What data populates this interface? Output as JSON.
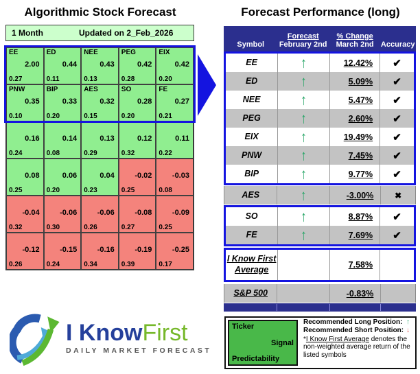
{
  "colors": {
    "accent_blue": "#1414E0",
    "navy_header": "#2B2F8E",
    "pale_green": "#CCFFCC",
    "heat_green": "#90EE90",
    "heat_red": "#F4837C",
    "row_gray": "#C3C3C3",
    "legend_green": "#49B849",
    "arrow_green": "#27A567",
    "arrow_red": "#E05555",
    "logo_blue": "#25409B",
    "logo_green": "#76B82A"
  },
  "left_panel": {
    "title": "Algorithmic Stock Forecast",
    "period": "1 Month",
    "updated": "Updated on 2_Feb_2026",
    "heatmap_rows": [
      {
        "cells": [
          {
            "ticker": "EE",
            "signal": "2.00",
            "predictability": "0.27",
            "color": "green"
          },
          {
            "ticker": "ED",
            "signal": "0.44",
            "predictability": "0.11",
            "color": "green"
          },
          {
            "ticker": "NEE",
            "signal": "0.43",
            "predictability": "0.13",
            "color": "green"
          },
          {
            "ticker": "PEG",
            "signal": "0.42",
            "predictability": "0.28",
            "color": "green"
          },
          {
            "ticker": "EIX",
            "signal": "0.42",
            "predictability": "0.20",
            "color": "green"
          }
        ]
      },
      {
        "cells": [
          {
            "ticker": "PNW",
            "signal": "0.35",
            "predictability": "0.10",
            "color": "green"
          },
          {
            "ticker": "BIP",
            "signal": "0.33",
            "predictability": "0.20",
            "color": "green"
          },
          {
            "ticker": "AES",
            "signal": "0.32",
            "predictability": "0.15",
            "color": "green"
          },
          {
            "ticker": "SO",
            "signal": "0.28",
            "predictability": "0.20",
            "color": "green"
          },
          {
            "ticker": "FE",
            "signal": "0.27",
            "predictability": "0.21",
            "color": "green"
          }
        ]
      },
      {
        "cells": [
          {
            "ticker": "",
            "signal": "0.16",
            "predictability": "0.24",
            "color": "green"
          },
          {
            "ticker": "",
            "signal": "0.14",
            "predictability": "0.08",
            "color": "green"
          },
          {
            "ticker": "",
            "signal": "0.13",
            "predictability": "0.29",
            "color": "green"
          },
          {
            "ticker": "",
            "signal": "0.12",
            "predictability": "0.32",
            "color": "green"
          },
          {
            "ticker": "",
            "signal": "0.11",
            "predictability": "0.22",
            "color": "green"
          }
        ]
      },
      {
        "cells": [
          {
            "ticker": "",
            "signal": "0.08",
            "predictability": "0.25",
            "color": "green"
          },
          {
            "ticker": "",
            "signal": "0.06",
            "predictability": "0.20",
            "color": "green"
          },
          {
            "ticker": "",
            "signal": "0.04",
            "predictability": "0.23",
            "color": "green"
          },
          {
            "ticker": "",
            "signal": "-0.02",
            "predictability": "0.25",
            "color": "red"
          },
          {
            "ticker": "",
            "signal": "-0.03",
            "predictability": "0.08",
            "color": "red"
          }
        ]
      },
      {
        "cells": [
          {
            "ticker": "",
            "signal": "-0.04",
            "predictability": "0.32",
            "color": "red"
          },
          {
            "ticker": "",
            "signal": "-0.06",
            "predictability": "0.30",
            "color": "red"
          },
          {
            "ticker": "",
            "signal": "-0.06",
            "predictability": "0.26",
            "color": "red"
          },
          {
            "ticker": "",
            "signal": "-0.08",
            "predictability": "0.27",
            "color": "red"
          },
          {
            "ticker": "",
            "signal": "-0.09",
            "predictability": "0.25",
            "color": "red"
          }
        ]
      },
      {
        "cells": [
          {
            "ticker": "",
            "signal": "-0.12",
            "predictability": "0.26",
            "color": "red"
          },
          {
            "ticker": "",
            "signal": "-0.15",
            "predictability": "0.24",
            "color": "red"
          },
          {
            "ticker": "",
            "signal": "-0.16",
            "predictability": "0.34",
            "color": "red"
          },
          {
            "ticker": "",
            "signal": "-0.19",
            "predictability": "0.39",
            "color": "red"
          },
          {
            "ticker": "",
            "signal": "-0.25",
            "predictability": "0.17",
            "color": "red"
          }
        ]
      }
    ]
  },
  "right_panel": {
    "title": "Forecast Performance (long)",
    "header": {
      "symbol": "Symbol",
      "forecast_top": "Forecast",
      "forecast_bottom": "February 2nd",
      "change_top": "% Change",
      "change_bottom": "March 2nd",
      "accuracy": "Accuracy"
    },
    "sections": [
      {
        "style": "box",
        "rows": [
          {
            "symbol": "EE",
            "forecast": "up",
            "change": "12.42%",
            "accuracy": "check",
            "shade": "white"
          },
          {
            "symbol": "ED",
            "forecast": "up",
            "change": "5.09%",
            "accuracy": "check",
            "shade": "gray"
          },
          {
            "symbol": "NEE",
            "forecast": "up",
            "change": "5.47%",
            "accuracy": "check",
            "shade": "white"
          },
          {
            "symbol": "PEG",
            "forecast": "up",
            "change": "2.60%",
            "accuracy": "check",
            "shade": "gray"
          },
          {
            "symbol": "EIX",
            "forecast": "up",
            "change": "19.49%",
            "accuracy": "check",
            "shade": "white"
          },
          {
            "symbol": "PNW",
            "forecast": "up",
            "change": "7.45%",
            "accuracy": "check",
            "shade": "gray"
          },
          {
            "symbol": "BIP",
            "forecast": "up",
            "change": "9.77%",
            "accuracy": "check",
            "shade": "white"
          }
        ]
      },
      {
        "style": "plain",
        "rows": [
          {
            "symbol": "AES",
            "forecast": "up",
            "change": "-3.00%",
            "accuracy": "cross",
            "shade": "gray"
          }
        ]
      },
      {
        "style": "box",
        "rows": [
          {
            "symbol": "SO",
            "forecast": "up",
            "change": "8.87%",
            "accuracy": "check",
            "shade": "white"
          },
          {
            "symbol": "FE",
            "forecast": "up",
            "change": "7.69%",
            "accuracy": "check",
            "shade": "gray"
          }
        ]
      },
      {
        "style": "box avg",
        "rows": [
          {
            "symbol": [
              "I Know First",
              "Average"
            ],
            "forecast": "",
            "change": "7.58%",
            "accuracy": "",
            "shade": "white",
            "tall": true,
            "underline": true
          }
        ]
      },
      {
        "style": "plain",
        "rows": [
          {
            "symbol": "S&P 500",
            "forecast": "",
            "change": "-0.83%",
            "accuracy": "",
            "shade": "gray",
            "underline": true
          }
        ]
      }
    ]
  },
  "logo": {
    "brand_primary": "I Know",
    "brand_secondary": "First",
    "tagline": "DAILY MARKET FORECAST"
  },
  "legend": {
    "ticker": "Ticker",
    "signal": "Signal",
    "predictability": "Predictability",
    "long_label": "Recommended Long Position:",
    "short_label": "Recommended Short Position:",
    "note_prefix": "*",
    "note_underline": "I Know First Average",
    "note_rest": " denotes the non-weighted average return of the listed symbols"
  },
  "chart_data": [
    {
      "type": "heatmap",
      "title": "Algorithmic Stock Forecast",
      "subtitle": "1 Month — Updated on 2_Feb_2026",
      "note": "each cell = ticker, signal (center), predictability (bottom-left); green = positive signal, red = negative; top 10 outlined in blue",
      "cells": [
        {
          "ticker": "EE",
          "signal": 2.0,
          "predictability": 0.27
        },
        {
          "ticker": "ED",
          "signal": 0.44,
          "predictability": 0.11
        },
        {
          "ticker": "NEE",
          "signal": 0.43,
          "predictability": 0.13
        },
        {
          "ticker": "PEG",
          "signal": 0.42,
          "predictability": 0.28
        },
        {
          "ticker": "EIX",
          "signal": 0.42,
          "predictability": 0.2
        },
        {
          "ticker": "PNW",
          "signal": 0.35,
          "predictability": 0.1
        },
        {
          "ticker": "BIP",
          "signal": 0.33,
          "predictability": 0.2
        },
        {
          "ticker": "AES",
          "signal": 0.32,
          "predictability": 0.15
        },
        {
          "ticker": "SO",
          "signal": 0.28,
          "predictability": 0.2
        },
        {
          "ticker": "FE",
          "signal": 0.27,
          "predictability": 0.21
        },
        {
          "ticker": null,
          "signal": 0.16,
          "predictability": 0.24
        },
        {
          "ticker": null,
          "signal": 0.14,
          "predictability": 0.08
        },
        {
          "ticker": null,
          "signal": 0.13,
          "predictability": 0.29
        },
        {
          "ticker": null,
          "signal": 0.12,
          "predictability": 0.32
        },
        {
          "ticker": null,
          "signal": 0.11,
          "predictability": 0.22
        },
        {
          "ticker": null,
          "signal": 0.08,
          "predictability": 0.25
        },
        {
          "ticker": null,
          "signal": 0.06,
          "predictability": 0.2
        },
        {
          "ticker": null,
          "signal": 0.04,
          "predictability": 0.23
        },
        {
          "ticker": null,
          "signal": -0.02,
          "predictability": 0.25
        },
        {
          "ticker": null,
          "signal": -0.03,
          "predictability": 0.08
        },
        {
          "ticker": null,
          "signal": -0.04,
          "predictability": 0.32
        },
        {
          "ticker": null,
          "signal": -0.06,
          "predictability": 0.3
        },
        {
          "ticker": null,
          "signal": -0.06,
          "predictability": 0.26
        },
        {
          "ticker": null,
          "signal": -0.08,
          "predictability": 0.27
        },
        {
          "ticker": null,
          "signal": -0.09,
          "predictability": 0.25
        },
        {
          "ticker": null,
          "signal": -0.12,
          "predictability": 0.26
        },
        {
          "ticker": null,
          "signal": -0.15,
          "predictability": 0.24
        },
        {
          "ticker": null,
          "signal": -0.16,
          "predictability": 0.34
        },
        {
          "ticker": null,
          "signal": -0.19,
          "predictability": 0.39
        },
        {
          "ticker": null,
          "signal": -0.25,
          "predictability": 0.17
        }
      ]
    },
    {
      "type": "table",
      "title": "Forecast Performance (long)",
      "columns": [
        "Symbol",
        "Forecast February 2nd",
        "% Change March 2nd",
        "Accuracy"
      ],
      "rows": [
        [
          "EE",
          "up",
          "12.42%",
          "correct"
        ],
        [
          "ED",
          "up",
          "5.09%",
          "correct"
        ],
        [
          "NEE",
          "up",
          "5.47%",
          "correct"
        ],
        [
          "PEG",
          "up",
          "2.60%",
          "correct"
        ],
        [
          "EIX",
          "up",
          "19.49%",
          "correct"
        ],
        [
          "PNW",
          "up",
          "7.45%",
          "correct"
        ],
        [
          "BIP",
          "up",
          "9.77%",
          "correct"
        ],
        [
          "AES",
          "up",
          "-3.00%",
          "incorrect"
        ],
        [
          "SO",
          "up",
          "8.87%",
          "correct"
        ],
        [
          "FE",
          "up",
          "7.69%",
          "correct"
        ],
        [
          "I Know First Average",
          "",
          "7.58%",
          ""
        ],
        [
          "S&P 500",
          "",
          "-0.83%",
          ""
        ]
      ]
    }
  ]
}
